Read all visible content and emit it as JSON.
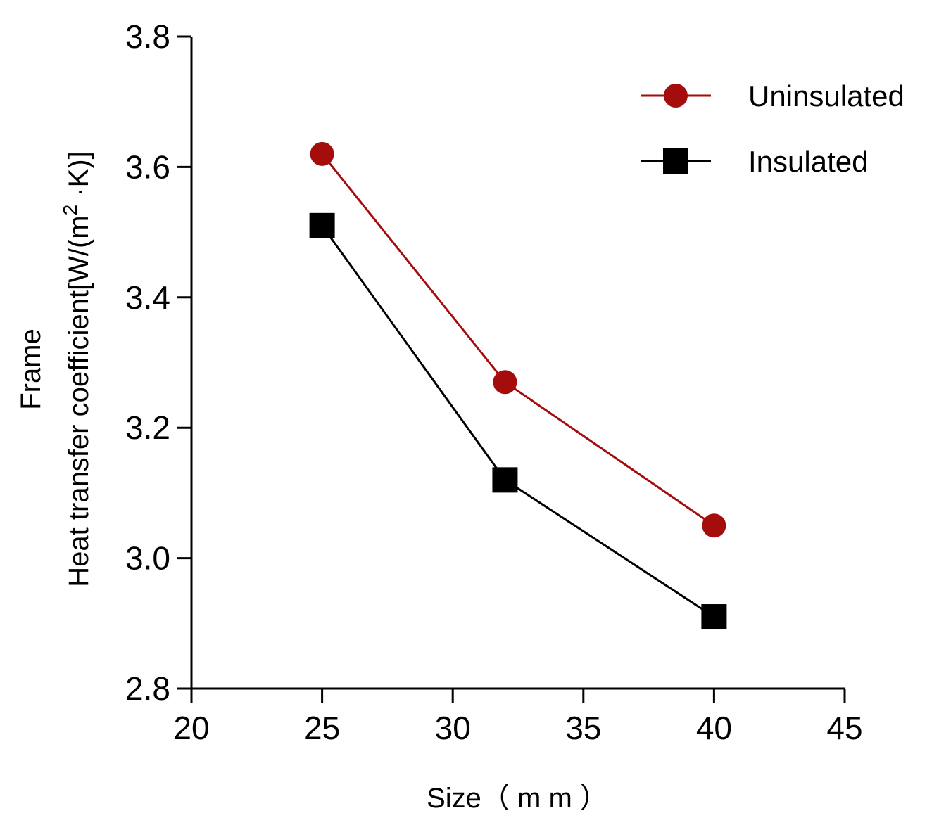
{
  "chart_data": {
    "type": "line",
    "title": "",
    "xlabel": "Size（ m m ）",
    "ylabel_lines": [
      "Frame",
      "Heat transfer coefficient[W/(m",
      "2",
      " ·K)]"
    ],
    "xlim": [
      20,
      45
    ],
    "ylim": [
      2.8,
      3.8
    ],
    "x_ticks": [
      20,
      25,
      30,
      35,
      40,
      45
    ],
    "y_ticks": [
      2.8,
      3.0,
      3.2,
      3.4,
      3.6,
      3.8
    ],
    "x_tick_labels": [
      "20",
      "25",
      "30",
      "35",
      "40",
      "45"
    ],
    "y_tick_labels": [
      "2.8",
      "3.0",
      "3.2",
      "3.4",
      "3.6",
      "3.8"
    ],
    "x": [
      25,
      32,
      40
    ],
    "series": [
      {
        "name": "Uninsulated",
        "values": [
          3.62,
          3.27,
          3.05
        ],
        "color": "#a50d0d",
        "marker": "circle"
      },
      {
        "name": "Insulated",
        "values": [
          3.51,
          3.12,
          2.91
        ],
        "color": "#000000",
        "marker": "square"
      }
    ],
    "legend_position": "top-right",
    "grid": false
  }
}
